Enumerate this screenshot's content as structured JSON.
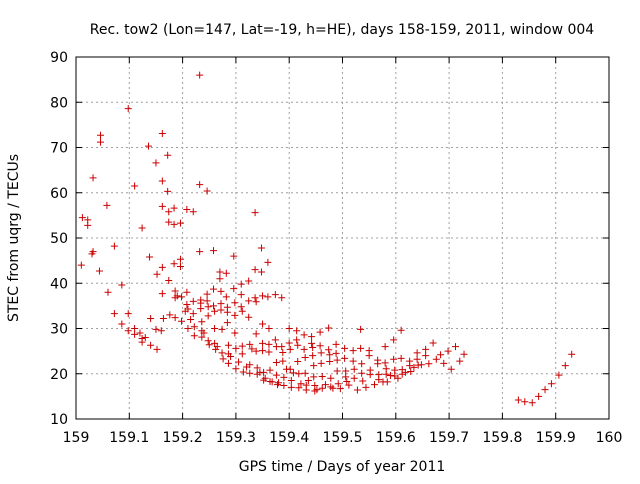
{
  "chart_data": {
    "type": "scatter",
    "title": "Rec. tow2 (Lon=147, Lat=-19, h=HE), days 158-159, 2011, window 004",
    "xlabel": "GPS time / Days of year 2011",
    "ylabel": "STEC from uqrg / TECUs",
    "xlim": [
      159,
      160
    ],
    "ylim": [
      10,
      90
    ],
    "xticks": [
      "159",
      "159.1",
      "159.2",
      "159.3",
      "159.4",
      "159.5",
      "159.6",
      "159.7",
      "159.8",
      "159.9",
      "160"
    ],
    "yticks": [
      "10",
      "20",
      "30",
      "40",
      "50",
      "60",
      "70",
      "80",
      "90"
    ],
    "grid": true,
    "marker": "+",
    "marker_color": "#cc0000",
    "points": [
      [
        159.01,
        44.0
      ],
      [
        159.012,
        54.5
      ],
      [
        159.022,
        54.0
      ],
      [
        159.022,
        52.8
      ],
      [
        159.032,
        63.3
      ],
      [
        159.032,
        47.0
      ],
      [
        159.044,
        42.7
      ],
      [
        159.046,
        72.7
      ],
      [
        159.046,
        71.2
      ],
      [
        159.058,
        57.2
      ],
      [
        159.06,
        38.0
      ],
      [
        159.072,
        48.2
      ],
      [
        159.072,
        33.3
      ],
      [
        159.086,
        39.6
      ],
      [
        159.086,
        31.0
      ],
      [
        159.098,
        78.6
      ],
      [
        159.098,
        33.3
      ],
      [
        159.098,
        29.5
      ],
      [
        159.11,
        61.5
      ],
      [
        159.11,
        30.0
      ],
      [
        159.11,
        28.7
      ],
      [
        159.124,
        52.2
      ],
      [
        159.124,
        27.8
      ],
      [
        159.124,
        27.0
      ],
      [
        159.136,
        70.3
      ],
      [
        159.138,
        45.8
      ],
      [
        159.14,
        32.2
      ],
      [
        159.14,
        26.3
      ],
      [
        159.15,
        66.6
      ],
      [
        159.15,
        29.8
      ],
      [
        159.152,
        42.0
      ],
      [
        159.152,
        25.4
      ],
      [
        159.162,
        73.1
      ],
      [
        159.162,
        62.6
      ],
      [
        159.162,
        57.0
      ],
      [
        159.162,
        43.5
      ],
      [
        159.162,
        37.7
      ],
      [
        159.164,
        32.2
      ],
      [
        159.172,
        68.3
      ],
      [
        159.172,
        60.3
      ],
      [
        159.174,
        55.8
      ],
      [
        159.174,
        53.5
      ],
      [
        159.174,
        40.6
      ],
      [
        159.176,
        33.0
      ],
      [
        159.184,
        56.6
      ],
      [
        159.184,
        53.0
      ],
      [
        159.184,
        44.3
      ],
      [
        159.186,
        38.3
      ],
      [
        159.186,
        36.8
      ],
      [
        159.186,
        32.4
      ],
      [
        159.196,
        53.3
      ],
      [
        159.196,
        45.3
      ],
      [
        159.196,
        43.7
      ],
      [
        159.198,
        37.0
      ],
      [
        159.198,
        31.6
      ],
      [
        159.208,
        56.3
      ],
      [
        159.208,
        38.0
      ],
      [
        159.208,
        35.3
      ],
      [
        159.21,
        34.3
      ],
      [
        159.21,
        30.0
      ],
      [
        159.22,
        55.8
      ],
      [
        159.22,
        36.0
      ],
      [
        159.22,
        33.3
      ],
      [
        159.222,
        30.4
      ],
      [
        159.222,
        28.4
      ],
      [
        159.232,
        86.0
      ],
      [
        159.232,
        61.8
      ],
      [
        159.232,
        47.0
      ],
      [
        159.234,
        36.3
      ],
      [
        159.234,
        35.6
      ],
      [
        159.234,
        34.4
      ],
      [
        159.236,
        31.5
      ],
      [
        159.236,
        29.5
      ],
      [
        159.236,
        28.1
      ],
      [
        159.246,
        60.4
      ],
      [
        159.246,
        37.6
      ],
      [
        159.246,
        36.1
      ],
      [
        159.248,
        34.8
      ],
      [
        159.248,
        32.8
      ],
      [
        159.248,
        27.3
      ],
      [
        159.25,
        26.4
      ],
      [
        159.258,
        47.2
      ],
      [
        159.258,
        38.7
      ],
      [
        159.258,
        35.0
      ],
      [
        159.26,
        33.8
      ],
      [
        159.26,
        30.0
      ],
      [
        159.26,
        26.7
      ],
      [
        159.262,
        25.4
      ],
      [
        159.27,
        42.5
      ],
      [
        159.27,
        41.0
      ],
      [
        159.272,
        38.2
      ],
      [
        159.272,
        35.5
      ],
      [
        159.272,
        34.1
      ],
      [
        159.274,
        29.8
      ],
      [
        159.274,
        24.6
      ],
      [
        159.276,
        23.3
      ],
      [
        159.282,
        42.2
      ],
      [
        159.282,
        37.0
      ],
      [
        159.284,
        34.7
      ],
      [
        159.284,
        33.6
      ],
      [
        159.284,
        31.3
      ],
      [
        159.286,
        26.3
      ],
      [
        159.286,
        24.4
      ],
      [
        159.286,
        22.3
      ],
      [
        159.296,
        46.0
      ],
      [
        159.296,
        38.8
      ],
      [
        159.298,
        35.7
      ],
      [
        159.298,
        32.9
      ],
      [
        159.298,
        29.0
      ],
      [
        159.3,
        25.6
      ],
      [
        159.3,
        21.1
      ],
      [
        159.31,
        39.8
      ],
      [
        159.31,
        37.5
      ],
      [
        159.31,
        34.8
      ],
      [
        159.312,
        33.8
      ],
      [
        159.312,
        26.1
      ],
      [
        159.312,
        24.4
      ],
      [
        159.314,
        20.4
      ],
      [
        159.324,
        40.5
      ],
      [
        159.324,
        36.1
      ],
      [
        159.324,
        32.5
      ],
      [
        159.326,
        26.5
      ],
      [
        159.326,
        22.0
      ],
      [
        159.326,
        20.1
      ],
      [
        159.336,
        55.6
      ],
      [
        159.336,
        43.0
      ],
      [
        159.336,
        36.8
      ],
      [
        159.338,
        35.9
      ],
      [
        159.338,
        28.8
      ],
      [
        159.338,
        25.0
      ],
      [
        159.34,
        21.3
      ],
      [
        159.34,
        19.9
      ],
      [
        159.348,
        47.8
      ],
      [
        159.348,
        42.5
      ],
      [
        159.35,
        37.2
      ],
      [
        159.35,
        31.0
      ],
      [
        159.35,
        26.7
      ],
      [
        159.35,
        25.1
      ],
      [
        159.352,
        20.3
      ],
      [
        159.352,
        18.6
      ],
      [
        159.36,
        44.6
      ],
      [
        159.36,
        37.0
      ],
      [
        159.362,
        30.0
      ],
      [
        159.362,
        26.5
      ],
      [
        159.362,
        24.8
      ],
      [
        159.364,
        20.8
      ],
      [
        159.364,
        18.3
      ],
      [
        159.374,
        37.5
      ],
      [
        159.374,
        27.5
      ],
      [
        159.376,
        26.0
      ],
      [
        159.376,
        22.5
      ],
      [
        159.376,
        19.7
      ],
      [
        159.378,
        17.6
      ],
      [
        159.386,
        36.8
      ],
      [
        159.386,
        26.0
      ],
      [
        159.388,
        24.7
      ],
      [
        159.388,
        22.8
      ],
      [
        159.39,
        19.2
      ],
      [
        159.39,
        17.4
      ],
      [
        159.4,
        30.0
      ],
      [
        159.4,
        26.8
      ],
      [
        159.402,
        25.4
      ],
      [
        159.402,
        21.0
      ],
      [
        159.404,
        18.5
      ],
      [
        159.404,
        17.0
      ],
      [
        159.414,
        29.5
      ],
      [
        159.414,
        27.5
      ],
      [
        159.416,
        26.3
      ],
      [
        159.416,
        22.7
      ],
      [
        159.418,
        20.0
      ],
      [
        159.418,
        16.9
      ],
      [
        159.428,
        28.6
      ],
      [
        159.428,
        25.4
      ],
      [
        159.43,
        23.6
      ],
      [
        159.43,
        20.1
      ],
      [
        159.432,
        17.5
      ],
      [
        159.432,
        16.4
      ],
      [
        159.442,
        28.2
      ],
      [
        159.442,
        26.7
      ],
      [
        159.444,
        25.8
      ],
      [
        159.444,
        24.0
      ],
      [
        159.446,
        21.8
      ],
      [
        159.446,
        19.3
      ],
      [
        159.448,
        17.4
      ],
      [
        159.448,
        16.2
      ],
      [
        159.458,
        29.2
      ],
      [
        159.458,
        26.2
      ],
      [
        159.46,
        24.6
      ],
      [
        159.46,
        22.3
      ],
      [
        159.462,
        19.4
      ],
      [
        159.462,
        16.8
      ],
      [
        159.474,
        30.1
      ],
      [
        159.474,
        25.3
      ],
      [
        159.476,
        24.2
      ],
      [
        159.476,
        22.7
      ],
      [
        159.478,
        19.0
      ],
      [
        159.478,
        17.1
      ],
      [
        159.488,
        26.5
      ],
      [
        159.488,
        24.5
      ],
      [
        159.49,
        23.0
      ],
      [
        159.49,
        20.6
      ],
      [
        159.492,
        17.8
      ],
      [
        159.504,
        25.6
      ],
      [
        159.504,
        23.4
      ],
      [
        159.506,
        20.6
      ],
      [
        159.506,
        19.3
      ],
      [
        159.508,
        18.3
      ],
      [
        159.52,
        25.1
      ],
      [
        159.52,
        22.8
      ],
      [
        159.522,
        21.0
      ],
      [
        159.522,
        19.0
      ],
      [
        159.534,
        29.8
      ],
      [
        159.534,
        25.6
      ],
      [
        159.536,
        22.2
      ],
      [
        159.536,
        20.1
      ],
      [
        159.538,
        18.4
      ],
      [
        159.55,
        25.1
      ],
      [
        159.55,
        24.0
      ],
      [
        159.552,
        20.8
      ],
      [
        159.552,
        19.8
      ],
      [
        159.566,
        23.0
      ],
      [
        159.566,
        22.2
      ],
      [
        159.568,
        19.8
      ],
      [
        159.568,
        18.7
      ],
      [
        159.58,
        26.0
      ],
      [
        159.58,
        22.4
      ],
      [
        159.582,
        21.1
      ],
      [
        159.582,
        19.9
      ],
      [
        159.584,
        18.2
      ],
      [
        159.596,
        27.5
      ],
      [
        159.596,
        23.2
      ],
      [
        159.598,
        20.8
      ],
      [
        159.598,
        19.5
      ],
      [
        159.61,
        29.6
      ],
      [
        159.61,
        23.4
      ],
      [
        159.612,
        20.9
      ],
      [
        159.612,
        19.9
      ],
      [
        159.626,
        22.8
      ],
      [
        159.626,
        21.8
      ],
      [
        159.628,
        20.5
      ],
      [
        159.64,
        24.6
      ],
      [
        159.64,
        23.2
      ],
      [
        159.642,
        21.9
      ],
      [
        159.656,
        25.4
      ],
      [
        159.656,
        24.0
      ],
      [
        159.67,
        26.8
      ],
      [
        159.684,
        24.2
      ],
      [
        159.698,
        25.0
      ],
      [
        159.712,
        26.0
      ],
      [
        159.728,
        24.3
      ],
      [
        159.03,
        46.5
      ],
      [
        159.12,
        29.0
      ],
      [
        159.13,
        28.0
      ],
      [
        159.16,
        29.5
      ],
      [
        159.19,
        37.2
      ],
      [
        159.205,
        33.8
      ],
      [
        159.215,
        32.0
      ],
      [
        159.24,
        29.0
      ],
      [
        159.265,
        26.0
      ],
      [
        159.29,
        23.8
      ],
      [
        159.305,
        22.6
      ],
      [
        159.32,
        21.5
      ],
      [
        159.33,
        25.5
      ],
      [
        159.345,
        20.3
      ],
      [
        159.355,
        19.0
      ],
      [
        159.368,
        18.2
      ],
      [
        159.38,
        18.0
      ],
      [
        159.395,
        21.0
      ],
      [
        159.408,
        20.2
      ],
      [
        159.422,
        17.8
      ],
      [
        159.436,
        18.5
      ],
      [
        159.452,
        16.5
      ],
      [
        159.468,
        17.6
      ],
      [
        159.482,
        16.8
      ],
      [
        159.496,
        16.7
      ],
      [
        159.512,
        17.5
      ],
      [
        159.528,
        16.4
      ],
      [
        159.544,
        17.0
      ],
      [
        159.56,
        17.6
      ],
      [
        159.576,
        18.2
      ],
      [
        159.59,
        19.6
      ],
      [
        159.604,
        19.0
      ],
      [
        159.618,
        20.3
      ],
      [
        159.634,
        21.4
      ],
      [
        159.648,
        22.0
      ],
      [
        159.662,
        22.2
      ],
      [
        159.676,
        23.2
      ],
      [
        159.69,
        22.3
      ],
      [
        159.704,
        21.0
      ],
      [
        159.72,
        22.8
      ],
      [
        159.83,
        14.2
      ],
      [
        159.842,
        13.8
      ],
      [
        159.856,
        13.6
      ],
      [
        159.868,
        15.0
      ],
      [
        159.88,
        16.5
      ],
      [
        159.892,
        17.8
      ],
      [
        159.906,
        19.7
      ],
      [
        159.918,
        21.8
      ],
      [
        159.93,
        24.3
      ]
    ]
  }
}
